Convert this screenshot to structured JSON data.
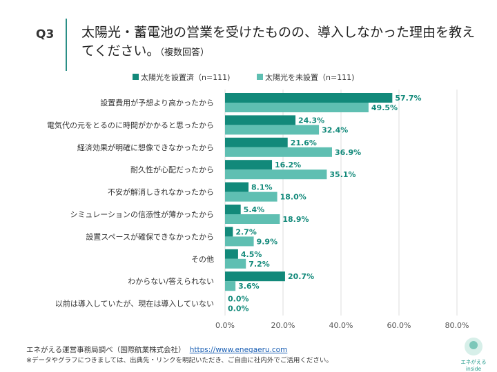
{
  "header": {
    "q": "Q3",
    "title": "太陽光・蓄電池の営業を受けたものの、導入しなかった理由を教えてください。",
    "title_sub": "（複数回答）"
  },
  "chart_data": {
    "type": "bar",
    "orientation": "horizontal",
    "categories": [
      "設置費用が予想より高かったから",
      "電気代の元をとるのに時間がかかると思ったから",
      "経済効果が明確に想像できなかったから",
      "耐久性が心配だったから",
      "不安が解消しきれなかったから",
      "シミュレーションの信憑性が薄かったから",
      "設置スペースが確保できなかったから",
      "その他",
      "わからない/答えられない",
      "以前は導入していたが、現在は導入していない"
    ],
    "series": [
      {
        "name": "太陽光を設置済（n=111)",
        "color": "#12897a",
        "values": [
          57.7,
          24.3,
          21.6,
          16.2,
          8.1,
          5.4,
          2.7,
          4.5,
          20.7,
          0.0
        ]
      },
      {
        "name": "太陽光を未設置（n=111)",
        "color": "#5fbfb2",
        "values": [
          49.5,
          32.4,
          36.9,
          35.1,
          18.0,
          18.9,
          9.9,
          7.2,
          3.6,
          0.0
        ]
      }
    ],
    "xlim": [
      0,
      80
    ],
    "xticks": [
      "0.0%",
      "20.0%",
      "40.0%",
      "60.0%",
      "80.0%"
    ],
    "grid": true,
    "legend": "top",
    "label_color": "#12897a"
  },
  "footer": {
    "source": "エネがえる運営事務局調べ（国際航業株式会社）",
    "url": "https://www.enegaeru.com",
    "note": "※データやグラフにつきましては、出典先・リンクを明記いただき、ご自由に社内外でご活用ください。",
    "logo": "エネがえる inside"
  }
}
